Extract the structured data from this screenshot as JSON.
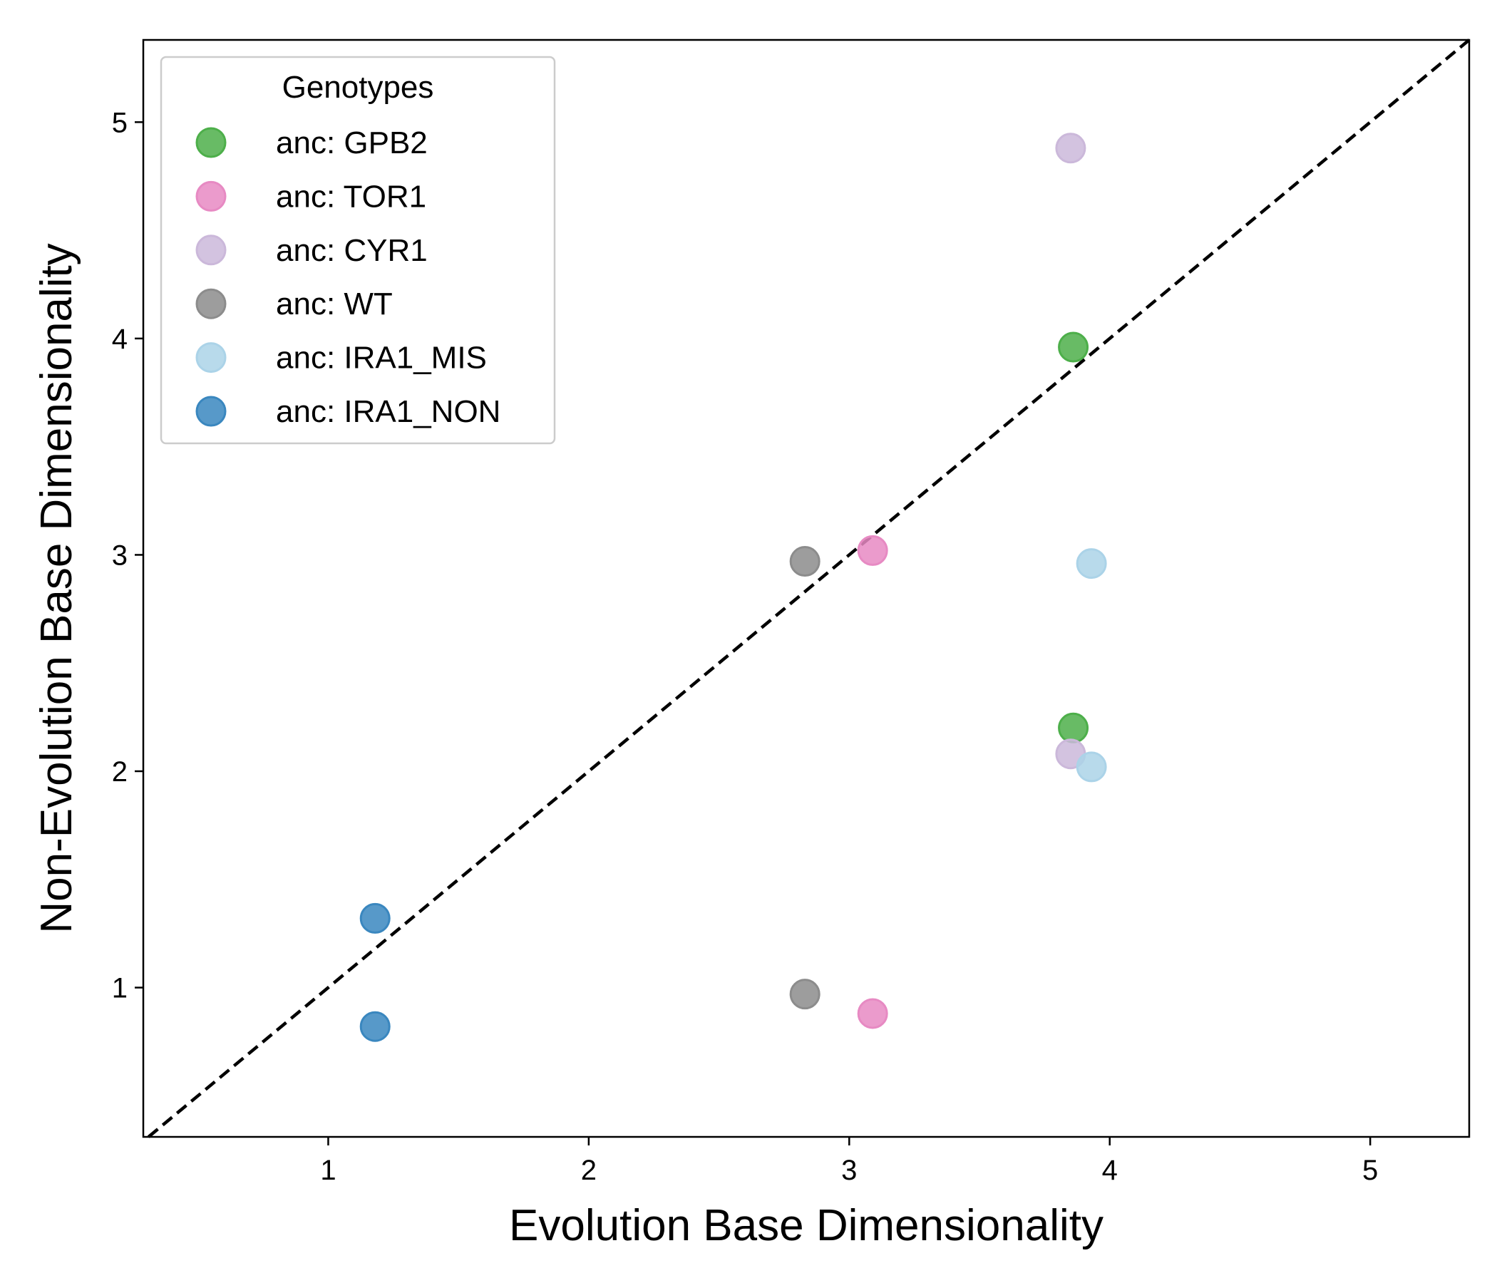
{
  "chart_data": {
    "type": "scatter",
    "xlabel": "Evolution Base Dimensionality",
    "ylabel": "Non-Evolution Base Dimensionality",
    "xlim": [
      0.29,
      5.38
    ],
    "ylim": [
      0.31,
      5.38
    ],
    "xticks": [
      1,
      2,
      3,
      4,
      5
    ],
    "yticks": [
      1,
      2,
      3,
      4,
      5
    ],
    "grid": false,
    "reference_line": {
      "style": "dashed",
      "color": "#000000",
      "slope": 1,
      "intercept": 0
    },
    "legend": {
      "title": "Genotypes",
      "placement": "top-left"
    },
    "series": [
      {
        "name": "anc: GPB2",
        "color": "#4daf4a",
        "points": [
          [
            3.86,
            3.96
          ],
          [
            3.86,
            2.2
          ]
        ]
      },
      {
        "name": "anc: TOR1",
        "color": "#e78ac3",
        "points": [
          [
            3.09,
            3.02
          ],
          [
            3.09,
            0.88
          ]
        ]
      },
      {
        "name": "anc: CYR1",
        "color": "#cbb8da",
        "points": [
          [
            3.85,
            4.88
          ],
          [
            3.85,
            2.08
          ]
        ]
      },
      {
        "name": "anc: WT",
        "color": "#8c8c8c",
        "points": [
          [
            2.83,
            2.97
          ],
          [
            2.83,
            0.97
          ]
        ]
      },
      {
        "name": "anc: IRA1_MIS",
        "color": "#abd3e8",
        "points": [
          [
            3.93,
            2.96
          ],
          [
            3.93,
            2.02
          ]
        ]
      },
      {
        "name": "anc: IRA1_NON",
        "color": "#3a87bf",
        "points": [
          [
            1.18,
            1.32
          ],
          [
            1.18,
            0.82
          ]
        ]
      }
    ]
  }
}
